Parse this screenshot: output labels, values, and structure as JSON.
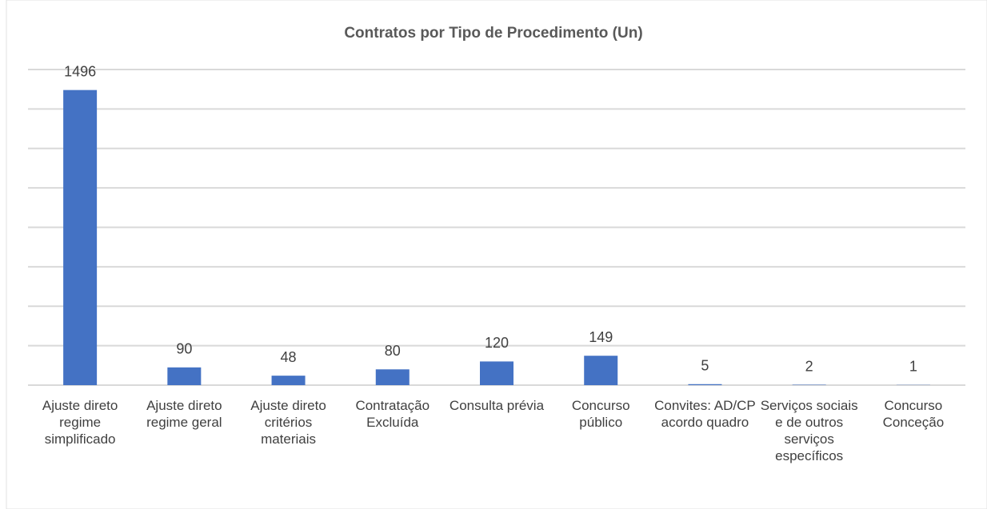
{
  "chart_data": {
    "type": "bar",
    "title": "Contratos por Tipo de Procedimento (Un)",
    "categories": [
      "Ajuste direto regime simplificado",
      "Ajuste direto regime geral",
      "Ajuste direto critérios materiais",
      "Contratação Excluída",
      "Consulta prévia",
      "Concurso público",
      "Convites: AD/CP acordo quadro",
      "Serviços sociais e de outros serviços específicos",
      "Concurso Conceção"
    ],
    "values": [
      1496,
      90,
      48,
      80,
      120,
      149,
      5,
      2,
      1
    ],
    "color": "#4472c4",
    "ylim": [
      0,
      1600
    ],
    "yticks": [
      0,
      200,
      400,
      600,
      800,
      1000,
      1200,
      1400,
      1600
    ],
    "grid": true
  }
}
